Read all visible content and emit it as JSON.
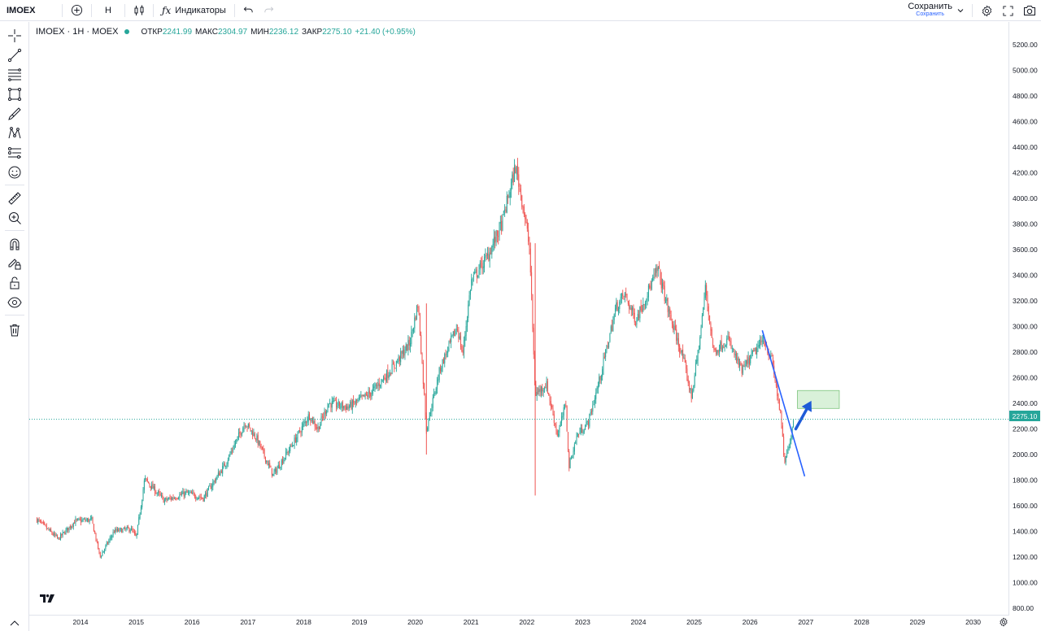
{
  "topbar": {
    "symbol": "IMOEX",
    "interval": "Н",
    "indicators_label": "Индикаторы",
    "save_label": "Сохранить",
    "save_sublabel": "Сохранить"
  },
  "legend": {
    "title": "IMOEX · 1Н · MOEX",
    "open_label": "ОТКР",
    "open_value": "2241.99",
    "high_label": "МАКС",
    "high_value": "2304.97",
    "low_label": "МИН",
    "low_value": "2236.12",
    "close_label": "ЗАКР",
    "close_value": "2275.10",
    "change": "+21.40 (+0.95%)"
  },
  "current_price_label": "2275.10",
  "colors": {
    "up": "#26a69a",
    "down": "#ef5350",
    "trendline": "#2962ff",
    "zone": "#cfeecf",
    "arrow": "#1e5bd8"
  },
  "tools": [
    "crosshair-icon",
    "trendline-icon",
    "fib-icon",
    "rectangle-icon",
    "brush-icon",
    "pattern-icon",
    "forecast-icon",
    "emoji-icon",
    "ruler-icon",
    "zoom-in-icon",
    "magnet-icon",
    "lock-drawings-icon",
    "unlock-icon",
    "eye-icon",
    "trash-icon"
  ],
  "chart_data": {
    "type": "candlestick",
    "title": "IMOEX · 1Н · MOEX",
    "x_tick_labels": [
      "2014",
      "2015",
      "2016",
      "2017",
      "2018",
      "2019",
      "2020",
      "2021",
      "2022",
      "2023",
      "2024",
      "2025",
      "2026",
      "2027",
      "2028",
      "2029",
      "2030"
    ],
    "y_tick_labels": [
      "800.00",
      "1000.00",
      "1200.00",
      "1400.00",
      "1600.00",
      "1800.00",
      "2000.00",
      "2200.00",
      "2400.00",
      "2600.00",
      "2800.00",
      "3000.00",
      "3200.00",
      "3400.00",
      "3600.00",
      "3800.00",
      "4000.00",
      "4200.00",
      "4400.00",
      "4600.00",
      "4800.00",
      "5000.00",
      "5200.00"
    ],
    "ylim": [
      760,
      5300
    ],
    "xlim": [
      2013.2,
      2030.6
    ],
    "current_price": 2275.1,
    "key_points": [
      {
        "x": 2013.2,
        "y": 1500
      },
      {
        "x": 2013.6,
        "y": 1340
      },
      {
        "x": 2013.9,
        "y": 1480
      },
      {
        "x": 2014.2,
        "y": 1490
      },
      {
        "x": 2014.35,
        "y": 1200
      },
      {
        "x": 2014.6,
        "y": 1400
      },
      {
        "x": 2014.9,
        "y": 1420
      },
      {
        "x": 2015.0,
        "y": 1350
      },
      {
        "x": 2015.15,
        "y": 1810
      },
      {
        "x": 2015.5,
        "y": 1640
      },
      {
        "x": 2015.9,
        "y": 1700
      },
      {
        "x": 2016.2,
        "y": 1660
      },
      {
        "x": 2016.6,
        "y": 1930
      },
      {
        "x": 2016.95,
        "y": 2250
      },
      {
        "x": 2017.15,
        "y": 2130
      },
      {
        "x": 2017.45,
        "y": 1840
      },
      {
        "x": 2017.8,
        "y": 2080
      },
      {
        "x": 2018.1,
        "y": 2310
      },
      {
        "x": 2018.25,
        "y": 2200
      },
      {
        "x": 2018.45,
        "y": 2400
      },
      {
        "x": 2018.8,
        "y": 2370
      },
      {
        "x": 2019.2,
        "y": 2480
      },
      {
        "x": 2019.6,
        "y": 2680
      },
      {
        "x": 2019.9,
        "y": 2870
      },
      {
        "x": 2020.05,
        "y": 3180
      },
      {
        "x": 2020.2,
        "y": 2200
      },
      {
        "x": 2020.45,
        "y": 2680
      },
      {
        "x": 2020.75,
        "y": 3000
      },
      {
        "x": 2020.85,
        "y": 2780
      },
      {
        "x": 2021.0,
        "y": 3350
      },
      {
        "x": 2021.3,
        "y": 3550
      },
      {
        "x": 2021.55,
        "y": 3800
      },
      {
        "x": 2021.8,
        "y": 4250
      },
      {
        "x": 2021.95,
        "y": 3900
      },
      {
        "x": 2022.05,
        "y": 3600
      },
      {
        "x": 2022.15,
        "y": 2470
      },
      {
        "x": 2022.35,
        "y": 2550
      },
      {
        "x": 2022.55,
        "y": 2150
      },
      {
        "x": 2022.7,
        "y": 2400
      },
      {
        "x": 2022.75,
        "y": 1900
      },
      {
        "x": 2022.9,
        "y": 2150
      },
      {
        "x": 2023.1,
        "y": 2250
      },
      {
        "x": 2023.3,
        "y": 2580
      },
      {
        "x": 2023.6,
        "y": 3150
      },
      {
        "x": 2023.75,
        "y": 3250
      },
      {
        "x": 2023.95,
        "y": 3050
      },
      {
        "x": 2024.1,
        "y": 3200
      },
      {
        "x": 2024.35,
        "y": 3450
      },
      {
        "x": 2024.55,
        "y": 3100
      },
      {
        "x": 2024.8,
        "y": 2750
      },
      {
        "x": 2024.95,
        "y": 2450
      },
      {
        "x": 2025.1,
        "y": 2900
      },
      {
        "x": 2025.2,
        "y": 3300
      },
      {
        "x": 2025.35,
        "y": 2800
      },
      {
        "x": 2025.6,
        "y": 2900
      },
      {
        "x": 2025.85,
        "y": 2650
      },
      {
        "x": 2026.05,
        "y": 2780
      },
      {
        "x": 2026.25,
        "y": 2900
      },
      {
        "x": 2026.4,
        "y": 2720
      },
      {
        "x": 2026.55,
        "y": 2300
      },
      {
        "x": 2026.62,
        "y": 1920
      },
      {
        "x": 2026.72,
        "y": 2120
      },
      {
        "x": 2026.78,
        "y": 2275.1
      }
    ],
    "drawings": {
      "trendline": {
        "from": {
          "x": 2026.22,
          "y": 2970
        },
        "to": {
          "x": 2026.98,
          "y": 1830
        }
      },
      "target_zone": {
        "x0": 2026.85,
        "x1": 2027.6,
        "y0": 2360,
        "y1": 2500
      },
      "arrow": {
        "from": {
          "x": 2026.82,
          "y": 2200
        },
        "to": {
          "x": 2027.1,
          "y": 2420
        }
      }
    }
  }
}
